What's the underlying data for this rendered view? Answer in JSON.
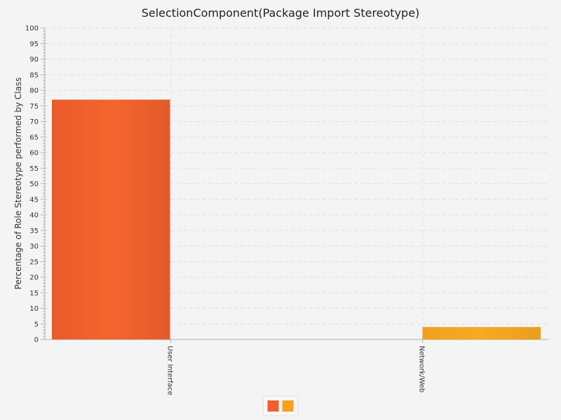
{
  "chart_data": {
    "type": "bar",
    "title": "SelectionComponent(Package Import Stereotype)",
    "xlabel": "",
    "ylabel": "Percentage of Role Stereotype performed by Class",
    "ylim": [
      0,
      100
    ],
    "ytick_step": 5,
    "ytick_minor_step": 1,
    "grid": true,
    "legend_position": "bottom-center",
    "categories": [
      "User Interface",
      "Network/Web"
    ],
    "series": [
      {
        "color": "#f0602e",
        "values": [
          77,
          0
        ]
      },
      {
        "color": "#f5a31f",
        "values": [
          0,
          4
        ]
      }
    ],
    "colors": {
      "background": "#f4f4f4",
      "grid": "#dedede",
      "axis": "#b0b0b0"
    }
  }
}
